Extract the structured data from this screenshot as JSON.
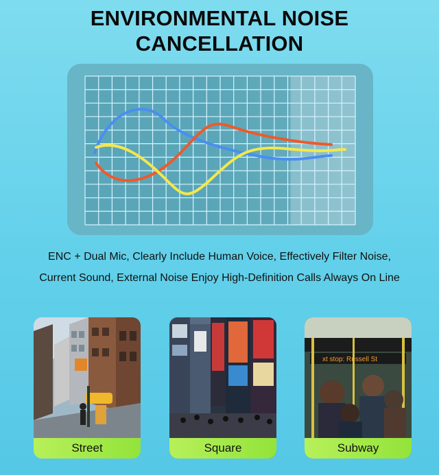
{
  "title": {
    "line1": "ENVIRONMENTAL NOISE",
    "line2": "CANCELLATION"
  },
  "waveform": {
    "colors": {
      "blue": "#4a8ef0",
      "orange": "#ee5a2a",
      "yellow": "#f4e84a",
      "grid": "#d6f4ff",
      "panel": "#67b5c6"
    }
  },
  "description": {
    "line1": "ENC + Dual Mic, Clearly Include Human Voice, Effectively Filter Noise,",
    "line2": "Current Sound, External Noise Enjoy High-Definition Calls Always On Line"
  },
  "scenes": [
    {
      "label": "Street",
      "icon": "street-photo"
    },
    {
      "label": "Square",
      "icon": "square-photo"
    },
    {
      "label": "Subway",
      "icon": "subway-photo",
      "sign_text": "xt stop: Russell St"
    }
  ],
  "accent": "#a6ea4a"
}
